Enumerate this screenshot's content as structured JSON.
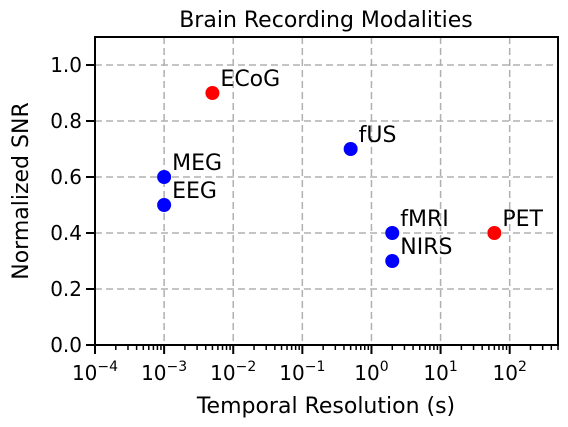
{
  "chart_data": {
    "type": "scatter",
    "title": "Brain Recording Modalities",
    "xlabel": "Temporal Resolution (s)",
    "ylabel": "Normalized SNR",
    "xscale": "log",
    "xlim": [
      0.0001,
      500
    ],
    "ylim": [
      0.0,
      1.1
    ],
    "grid": true,
    "x_ticks": [
      {
        "base": "10",
        "exp": "−4",
        "value": 0.0001
      },
      {
        "base": "10",
        "exp": "−3",
        "value": 0.001
      },
      {
        "base": "10",
        "exp": "−2",
        "value": 0.01
      },
      {
        "base": "10",
        "exp": "−1",
        "value": 0.1
      },
      {
        "base": "10",
        "exp": "0",
        "value": 1
      },
      {
        "base": "10",
        "exp": "1",
        "value": 10
      },
      {
        "base": "10",
        "exp": "2",
        "value": 100
      }
    ],
    "y_ticks": [
      {
        "label": "0.0",
        "value": 0.0
      },
      {
        "label": "0.2",
        "value": 0.2
      },
      {
        "label": "0.4",
        "value": 0.4
      },
      {
        "label": "0.6",
        "value": 0.6
      },
      {
        "label": "0.8",
        "value": 0.8
      },
      {
        "label": "1.0",
        "value": 1.0
      }
    ],
    "points": [
      {
        "label": "ECoG",
        "x": 0.005,
        "y": 0.9,
        "color": "#ff0000"
      },
      {
        "label": "fUS",
        "x": 0.5,
        "y": 0.7,
        "color": "#0000ff"
      },
      {
        "label": "MEG",
        "x": 0.001,
        "y": 0.6,
        "color": "#0000ff"
      },
      {
        "label": "EEG",
        "x": 0.001,
        "y": 0.5,
        "color": "#0000ff"
      },
      {
        "label": "fMRI",
        "x": 2,
        "y": 0.4,
        "color": "#0000ff"
      },
      {
        "label": "PET",
        "x": 60,
        "y": 0.4,
        "color": "#ff0000"
      },
      {
        "label": "NIRS",
        "x": 2,
        "y": 0.3,
        "color": "#0000ff"
      }
    ]
  }
}
